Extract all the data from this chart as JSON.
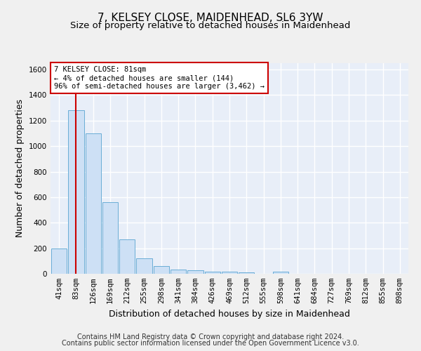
{
  "title": "7, KELSEY CLOSE, MAIDENHEAD, SL6 3YW",
  "subtitle": "Size of property relative to detached houses in Maidenhead",
  "xlabel": "Distribution of detached houses by size in Maidenhead",
  "ylabel": "Number of detached properties",
  "footer_line1": "Contains HM Land Registry data © Crown copyright and database right 2024.",
  "footer_line2": "Contains public sector information licensed under the Open Government Licence v3.0.",
  "bar_labels": [
    "41sqm",
    "83sqm",
    "126sqm",
    "169sqm",
    "212sqm",
    "255sqm",
    "298sqm",
    "341sqm",
    "384sqm",
    "426sqm",
    "469sqm",
    "512sqm",
    "555sqm",
    "598sqm",
    "641sqm",
    "684sqm",
    "727sqm",
    "769sqm",
    "812sqm",
    "855sqm",
    "898sqm"
  ],
  "bar_values": [
    200,
    1280,
    1100,
    560,
    270,
    120,
    60,
    35,
    25,
    18,
    15,
    12,
    0,
    18,
    0,
    0,
    0,
    0,
    0,
    0,
    0
  ],
  "bar_color": "#cde0f5",
  "bar_edge_color": "#6aadd5",
  "property_line_color": "#cc0000",
  "annotation_text": "7 KELSEY CLOSE: 81sqm\n← 4% of detached houses are smaller (144)\n96% of semi-detached houses are larger (3,462) →",
  "annotation_box_color": "#cc0000",
  "ylim": [
    0,
    1650
  ],
  "yticks": [
    0,
    200,
    400,
    600,
    800,
    1000,
    1200,
    1400,
    1600
  ],
  "bg_color": "#e8eef8",
  "grid_color": "#ffffff",
  "title_fontsize": 11,
  "subtitle_fontsize": 9.5,
  "ylabel_fontsize": 9,
  "xlabel_fontsize": 9,
  "tick_fontsize": 7.5,
  "annotation_fontsize": 7.5,
  "footer_fontsize": 7
}
